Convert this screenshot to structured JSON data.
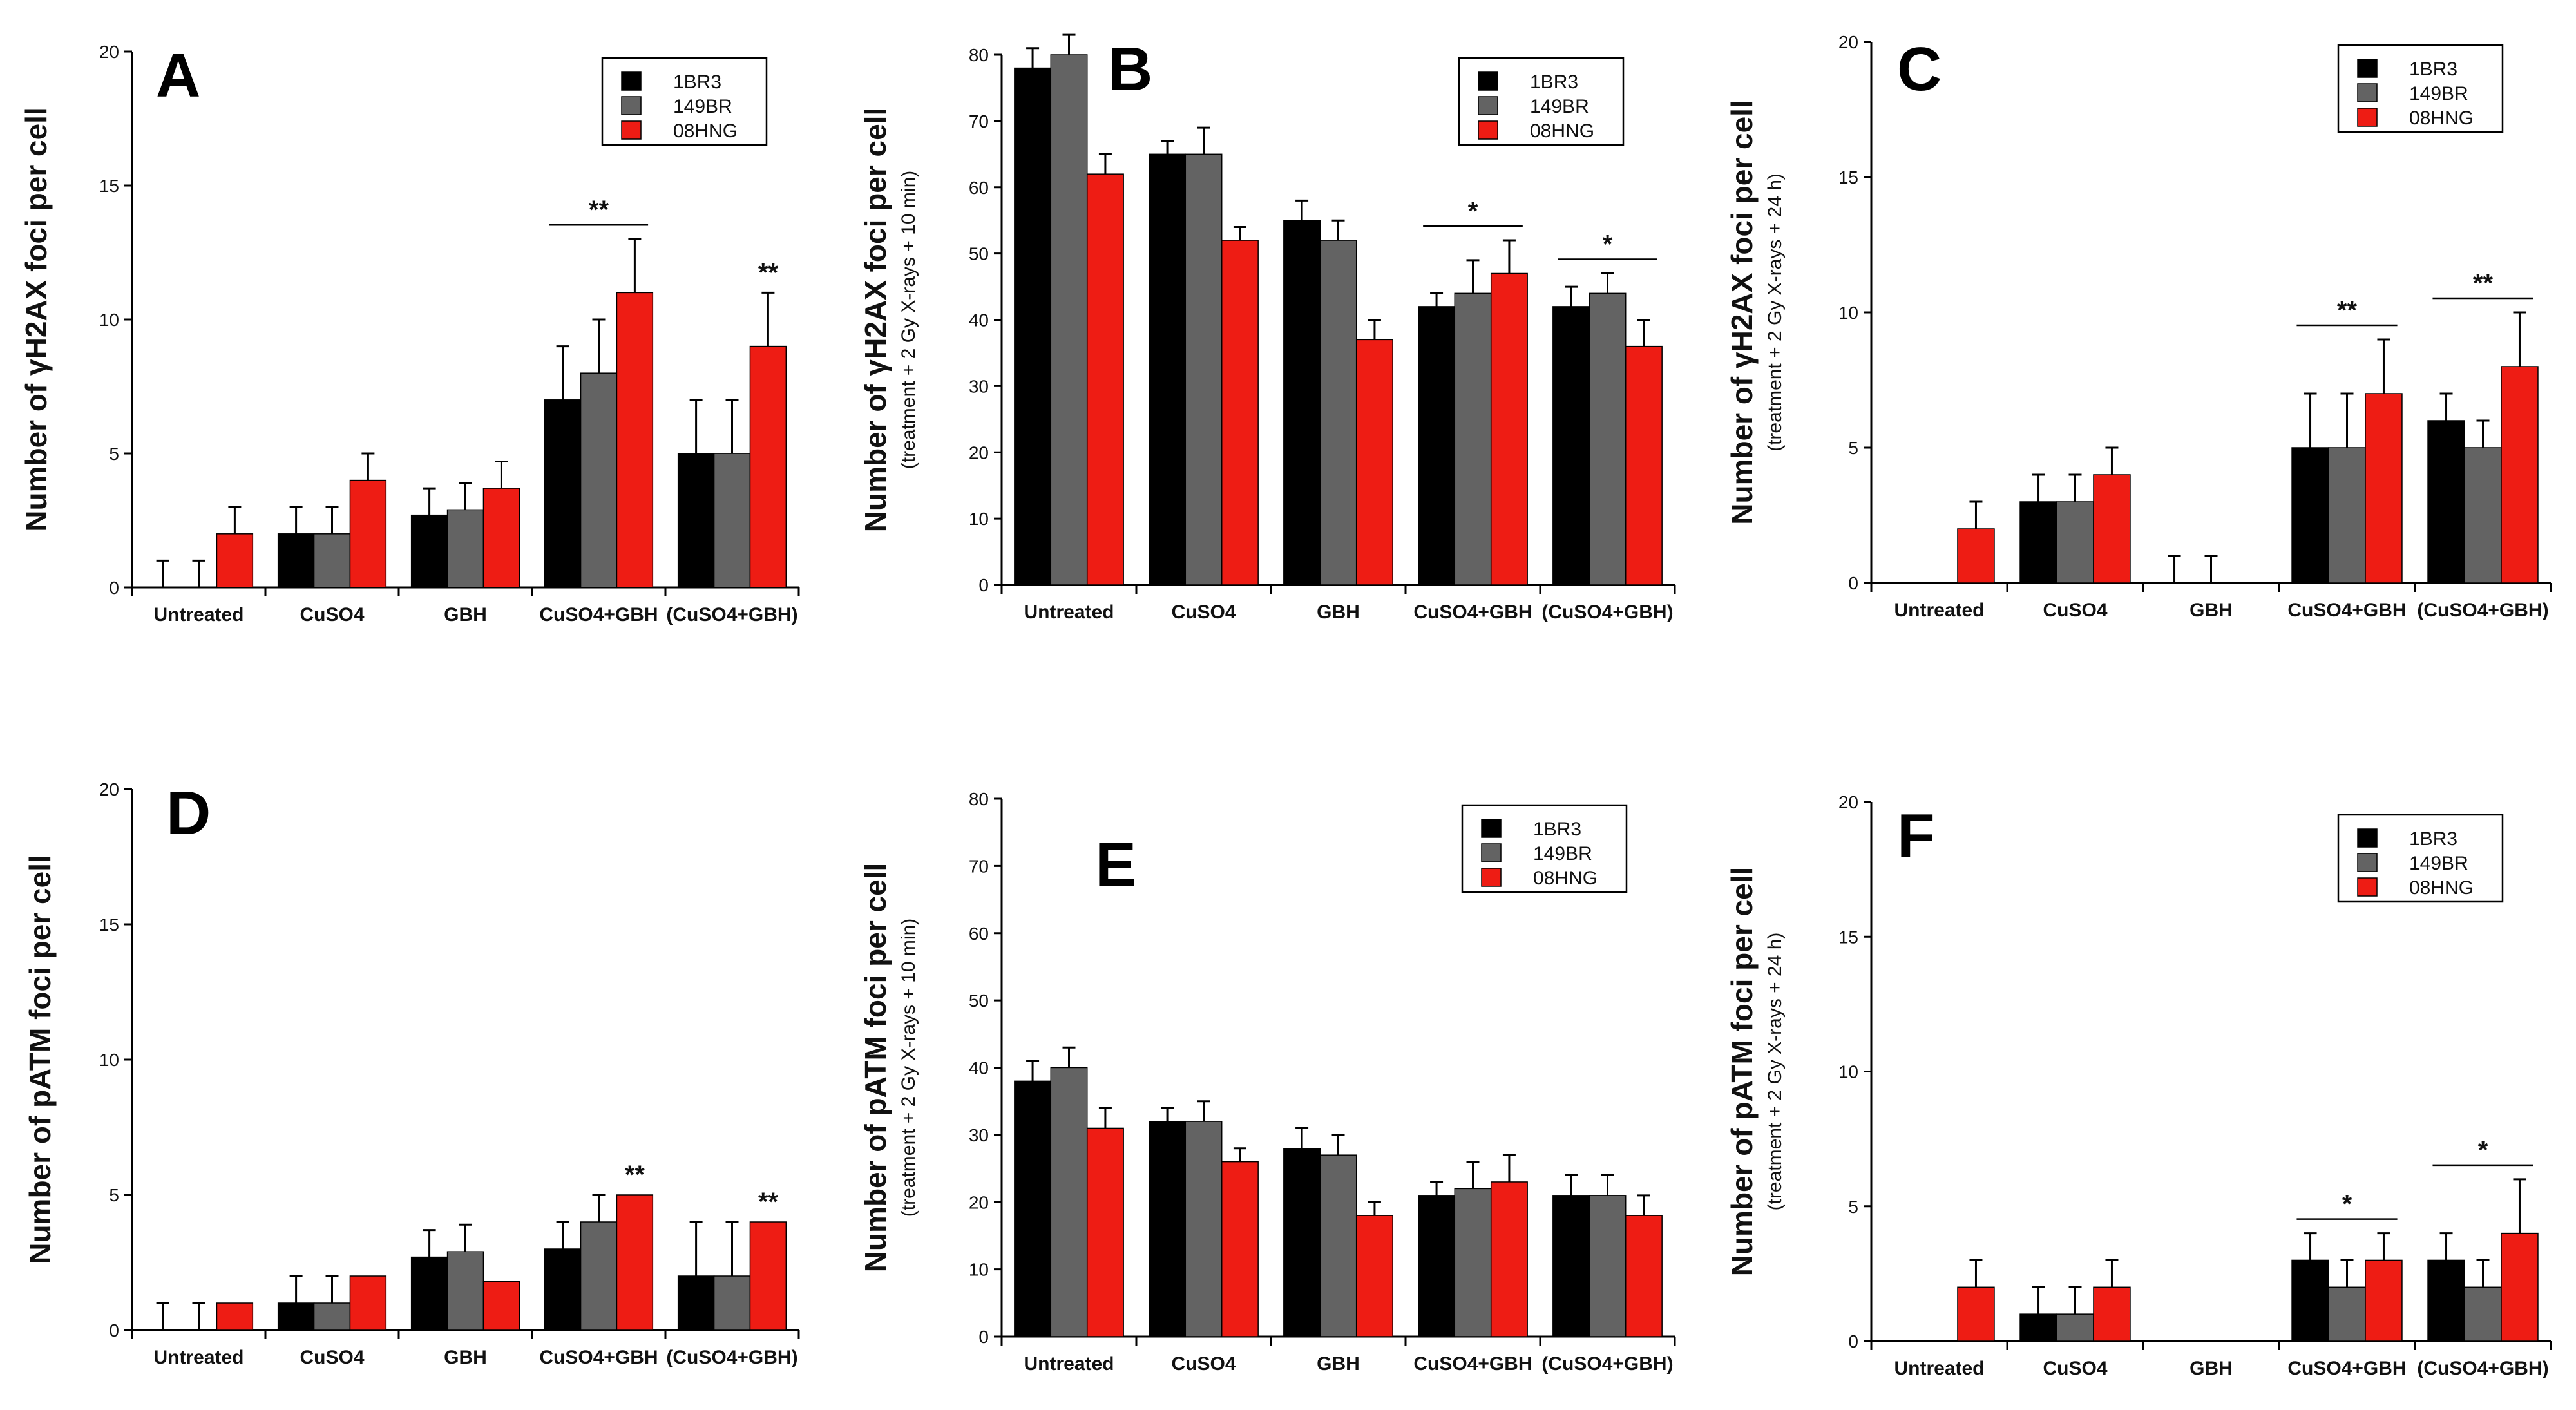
{
  "colors": {
    "1BR3": "#000000",
    "149BR": "#636363",
    "08HNG": "#ee1c14"
  },
  "chart_data": [
    {
      "type": "bar",
      "panel": "A",
      "ylabel": "Number of γH2AX foci per cell",
      "ylabel_sub": "",
      "categories": [
        "Untreated",
        "CuSO4",
        "GBH",
        "CuSO4+GBH",
        "(CuSO4+GBH)"
      ],
      "ylim": [
        0,
        20
      ],
      "yticks": [
        0,
        5,
        10,
        15,
        20
      ],
      "legend": [
        "1BR3",
        "149BR",
        "08HNG"
      ],
      "legend_position": "top-right",
      "series": [
        {
          "name": "1BR3",
          "values": [
            0,
            2,
            2.7,
            7,
            5
          ],
          "errors": [
            1,
            1,
            1,
            2,
            2
          ]
        },
        {
          "name": "149BR",
          "values": [
            0,
            2,
            2.9,
            8,
            5
          ],
          "errors": [
            1,
            1,
            1,
            2,
            2
          ]
        },
        {
          "name": "08HNG",
          "values": [
            2,
            4,
            3.7,
            11,
            9
          ],
          "errors": [
            1,
            1,
            1,
            2,
            2
          ]
        }
      ],
      "significance": [
        {
          "category": 3,
          "label": "**",
          "line": true
        },
        {
          "category": 4,
          "label": "**",
          "line": false
        }
      ]
    },
    {
      "type": "bar",
      "panel": "B",
      "ylabel": "Number of γH2AX foci per cell",
      "ylabel_sub": "(treatment + 2 Gy X-rays + 10 min)",
      "categories": [
        "Untreated",
        "CuSO4",
        "GBH",
        "CuSO4+GBH",
        "(CuSO4+GBH)"
      ],
      "ylim": [
        0,
        80
      ],
      "yticks": [
        0,
        10,
        20,
        30,
        40,
        50,
        60,
        70,
        80
      ],
      "legend": [
        "1BR3",
        "149BR",
        "08HNG"
      ],
      "legend_position": "top-right",
      "series": [
        {
          "name": "1BR3",
          "values": [
            78,
            65,
            55,
            42,
            42
          ],
          "errors": [
            3,
            2,
            3,
            2,
            3
          ]
        },
        {
          "name": "149BR",
          "values": [
            80,
            65,
            52,
            44,
            44
          ],
          "errors": [
            3,
            4,
            3,
            5,
            3
          ]
        },
        {
          "name": "08HNG",
          "values": [
            62,
            52,
            37,
            47,
            36
          ],
          "errors": [
            3,
            2,
            3,
            5,
            4
          ]
        }
      ],
      "significance": [
        {
          "category": 3,
          "label": "*",
          "line": true
        },
        {
          "category": 4,
          "label": "*",
          "line": true
        }
      ]
    },
    {
      "type": "bar",
      "panel": "C",
      "ylabel": "Number of γH2AX foci per cell",
      "ylabel_sub": "(treatment + 2 Gy X-rays + 24 h)",
      "categories": [
        "Untreated",
        "CuSO4",
        "GBH",
        "CuSO4+GBH",
        "(CuSO4+GBH)"
      ],
      "ylim": [
        0,
        20
      ],
      "yticks": [
        0,
        5,
        10,
        15,
        20
      ],
      "legend": [
        "1BR3",
        "149BR",
        "08HNG"
      ],
      "legend_position": "top-right",
      "series": [
        {
          "name": "1BR3",
          "values": [
            0,
            3,
            0,
            5,
            6
          ],
          "errors": [
            0,
            1,
            1,
            2,
            1
          ]
        },
        {
          "name": "149BR",
          "values": [
            0,
            3,
            0,
            5,
            5
          ],
          "errors": [
            0,
            1,
            1,
            2,
            1
          ]
        },
        {
          "name": "08HNG",
          "values": [
            2,
            4,
            0,
            7,
            8
          ],
          "errors": [
            1,
            1,
            0,
            2,
            2
          ]
        }
      ],
      "significance": [
        {
          "category": 3,
          "label": "**",
          "line": true
        },
        {
          "category": 4,
          "label": "**",
          "line": true
        }
      ]
    },
    {
      "type": "bar",
      "panel": "D",
      "ylabel": "Number of pATM foci per cell",
      "ylabel_sub": "",
      "categories": [
        "Untreated",
        "CuSO4",
        "GBH",
        "CuSO4+GBH",
        "(CuSO4+GBH)"
      ],
      "ylim": [
        0,
        20
      ],
      "yticks": [
        0,
        5,
        10,
        15,
        20
      ],
      "legend": [],
      "legend_position": "none",
      "series": [
        {
          "name": "1BR3",
          "values": [
            0,
            1,
            2.7,
            3,
            2
          ],
          "errors": [
            1,
            1,
            1,
            1,
            2
          ]
        },
        {
          "name": "149BR",
          "values": [
            0,
            1,
            2.9,
            4,
            2
          ],
          "errors": [
            1,
            1,
            1,
            1,
            2
          ]
        },
        {
          "name": "08HNG",
          "values": [
            1,
            2,
            1.8,
            5,
            4
          ],
          "errors": [
            0,
            0,
            0,
            0,
            0
          ]
        }
      ],
      "significance": [
        {
          "category": 3,
          "label": "**",
          "line": false
        },
        {
          "category": 4,
          "label": "**",
          "line": false
        }
      ]
    },
    {
      "type": "bar",
      "panel": "E",
      "ylabel": "Number of pATM foci per cell",
      "ylabel_sub": "(treatment + 2 Gy X-rays + 10 min)",
      "categories": [
        "Untreated",
        "CuSO4",
        "GBH",
        "CuSO4+GBH",
        "(CuSO4+GBH)"
      ],
      "ylim": [
        0,
        80
      ],
      "yticks": [
        0,
        10,
        20,
        30,
        40,
        50,
        60,
        70,
        80
      ],
      "legend": [
        "1BR3",
        "149BR",
        "08HNG"
      ],
      "legend_position": "top-right",
      "series": [
        {
          "name": "1BR3",
          "values": [
            38,
            32,
            28,
            21,
            21
          ],
          "errors": [
            3,
            2,
            3,
            2,
            3
          ]
        },
        {
          "name": "149BR",
          "values": [
            40,
            32,
            27,
            22,
            21
          ],
          "errors": [
            3,
            3,
            3,
            4,
            3
          ]
        },
        {
          "name": "08HNG",
          "values": [
            31,
            26,
            18,
            23,
            18
          ],
          "errors": [
            3,
            2,
            2,
            4,
            3
          ]
        }
      ],
      "significance": []
    },
    {
      "type": "bar",
      "panel": "F",
      "ylabel": "Number of pATM foci per cell",
      "ylabel_sub": "(treatment + 2 Gy X-rays + 24 h)",
      "categories": [
        "Untreated",
        "CuSO4",
        "GBH",
        "CuSO4+GBH",
        "(CuSO4+GBH)"
      ],
      "ylim": [
        0,
        20
      ],
      "yticks": [
        0,
        5,
        10,
        15,
        20
      ],
      "legend": [
        "1BR3",
        "149BR",
        "08HNG"
      ],
      "legend_position": "top-right",
      "series": [
        {
          "name": "1BR3",
          "values": [
            0,
            1,
            0,
            3,
            3
          ],
          "errors": [
            0,
            1,
            0,
            1,
            1
          ]
        },
        {
          "name": "149BR",
          "values": [
            0,
            1,
            0,
            2,
            2
          ],
          "errors": [
            0,
            1,
            0,
            1,
            1
          ]
        },
        {
          "name": "08HNG",
          "values": [
            2,
            2,
            0,
            3,
            4
          ],
          "errors": [
            1,
            1,
            0,
            1,
            2
          ]
        }
      ],
      "significance": [
        {
          "category": 3,
          "label": "*",
          "line": true
        },
        {
          "category": 4,
          "label": "*",
          "line": true
        }
      ]
    }
  ]
}
